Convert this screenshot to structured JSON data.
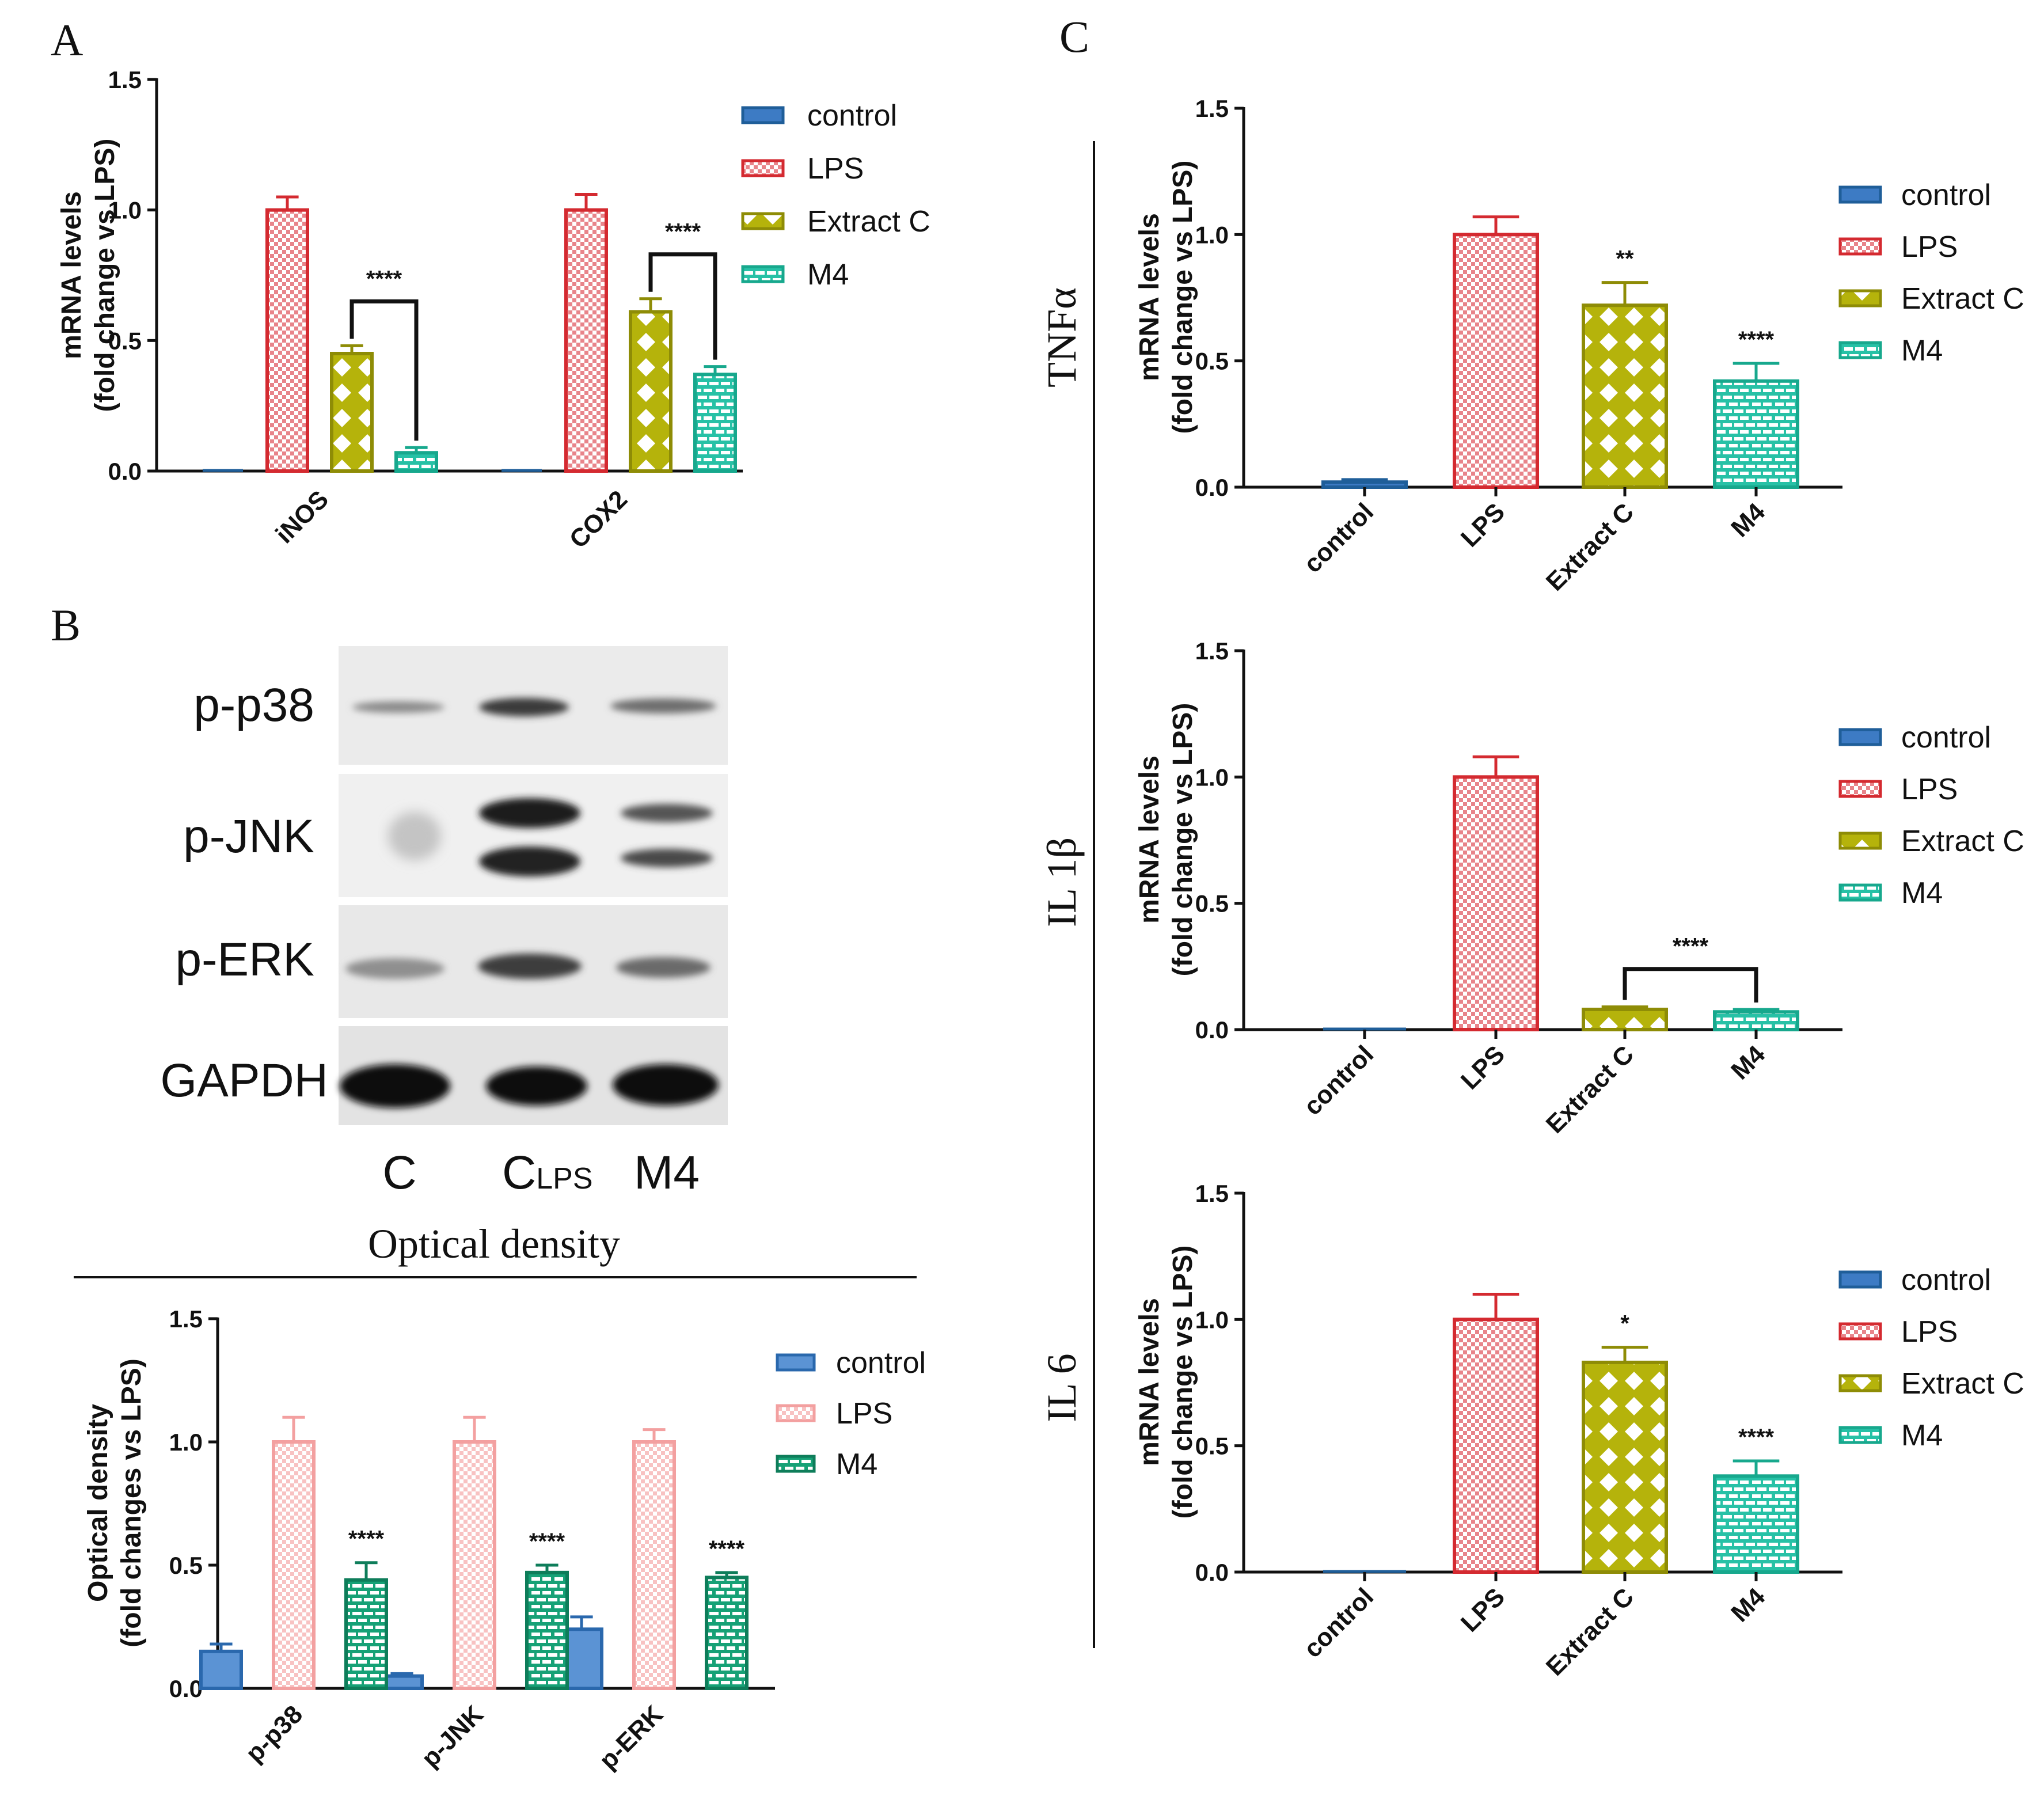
{
  "panel_labels": {
    "a": "A",
    "b": "B",
    "c": "C"
  },
  "colors": {
    "control": "#3d7bc4",
    "LPS": "#d42a30",
    "Extract C": "#b5b30b",
    "M4": "#27c1a6",
    "LPS_light": "#f3a0a0",
    "M4_dark": "#16a176",
    "axis": "#111111",
    "bracket": "#111111"
  },
  "blot": {
    "rows": [
      "p-p38",
      "p-JNK",
      "p-ERK",
      "GAPDH"
    ],
    "lanes": [
      "C",
      "C",
      "M4"
    ],
    "lane_subscript": "LPS",
    "title": "Optical density"
  },
  "chart_data": [
    {
      "id": "A",
      "type": "bar",
      "ylabel_lines": [
        "mRNA levels",
        "(fold change vs LPS)"
      ],
      "ylim": [
        0,
        1.5
      ],
      "yticks": [
        "0.0",
        "0.5",
        "1.0",
        "1.5"
      ],
      "categories": [
        "iNOS",
        "COX2"
      ],
      "series": [
        {
          "name": "control",
          "values": [
            0.0,
            0.0
          ],
          "errors": [
            0.0,
            0.0
          ]
        },
        {
          "name": "LPS",
          "values": [
            1.0,
            1.0
          ],
          "errors": [
            0.05,
            0.06
          ]
        },
        {
          "name": "Extract C",
          "values": [
            0.45,
            0.61
          ],
          "errors": [
            0.03,
            0.05
          ]
        },
        {
          "name": "M4",
          "values": [
            0.07,
            0.37
          ],
          "errors": [
            0.02,
            0.03
          ]
        }
      ],
      "legend": [
        "control",
        "LPS",
        "Extract C",
        "M4"
      ],
      "annotations": [
        {
          "category": 0,
          "from": 2,
          "to": 3,
          "label": "****",
          "y": 0.65
        },
        {
          "category": 1,
          "from": 2,
          "to": 3,
          "label": "****",
          "y": 0.83
        }
      ]
    },
    {
      "id": "B",
      "type": "bar",
      "ylabel_lines": [
        "Optical density",
        "(fold changes vs LPS)"
      ],
      "ylim": [
        0,
        1.5
      ],
      "yticks": [
        "0.0",
        "0.5",
        "1.0",
        "1.5"
      ],
      "categories": [
        "p-p38",
        "p-JNK",
        "p-ERK"
      ],
      "series": [
        {
          "name": "control",
          "values": [
            0.15,
            0.05,
            0.24
          ],
          "errors": [
            0.03,
            0.01,
            0.05
          ]
        },
        {
          "name": "LPS",
          "values": [
            1.0,
            1.0,
            1.0
          ],
          "errors": [
            0.1,
            0.1,
            0.05
          ]
        },
        {
          "name": "M4",
          "values": [
            0.44,
            0.47,
            0.45
          ],
          "errors": [
            0.07,
            0.03,
            0.02
          ]
        }
      ],
      "legend": [
        "control",
        "LPS",
        "M4"
      ],
      "annotations": [
        {
          "category": 0,
          "series": 2,
          "label": "****"
        },
        {
          "category": 1,
          "series": 2,
          "label": "****"
        },
        {
          "category": 2,
          "series": 2,
          "label": "****"
        }
      ]
    },
    {
      "id": "C1",
      "type": "bar",
      "side_label": "TNFα",
      "ylabel_lines": [
        "mRNA levels",
        "(fold change vs LPS)"
      ],
      "ylim": [
        0,
        1.5
      ],
      "yticks": [
        "0.0",
        "0.5",
        "1.0",
        "1.5"
      ],
      "categories": [
        "control",
        "LPS",
        "Extract C",
        "M4"
      ],
      "values": [
        0.02,
        1.0,
        0.72,
        0.42
      ],
      "errors": [
        0.01,
        0.07,
        0.09,
        0.07
      ],
      "legend": [
        "control",
        "LPS",
        "Extract C",
        "M4"
      ],
      "annotations": [
        {
          "bar": 2,
          "label": "**"
        },
        {
          "bar": 3,
          "label": "****"
        }
      ]
    },
    {
      "id": "C2",
      "type": "bar",
      "side_label": "IL 1β",
      "ylabel_lines": [
        "mRNA levels",
        "(fold change vs LPS)"
      ],
      "ylim": [
        0,
        1.5
      ],
      "yticks": [
        "0.0",
        "0.5",
        "1.0",
        "1.5"
      ],
      "categories": [
        "control",
        "LPS",
        "Extract C",
        "M4"
      ],
      "values": [
        0.0,
        1.0,
        0.08,
        0.07
      ],
      "errors": [
        0.0,
        0.08,
        0.01,
        0.01
      ],
      "legend": [
        "control",
        "LPS",
        "Extract C",
        "M4"
      ],
      "annotations": [
        {
          "from": 2,
          "to": 3,
          "label": "****",
          "y": 0.24
        }
      ]
    },
    {
      "id": "C3",
      "type": "bar",
      "side_label": "IL 6",
      "ylabel_lines": [
        "mRNA levels",
        "(fold change vs LPS)"
      ],
      "ylim": [
        0,
        1.5
      ],
      "yticks": [
        "0.0",
        "0.5",
        "1.0",
        "1.5"
      ],
      "categories": [
        "control",
        "LPS",
        "Extract C",
        "M4"
      ],
      "values": [
        0.0,
        1.0,
        0.83,
        0.38
      ],
      "errors": [
        0.0,
        0.1,
        0.06,
        0.06
      ],
      "legend": [
        "control",
        "LPS",
        "Extract C",
        "M4"
      ],
      "annotations": [
        {
          "bar": 2,
          "label": "*"
        },
        {
          "bar": 3,
          "label": "****"
        }
      ]
    }
  ]
}
